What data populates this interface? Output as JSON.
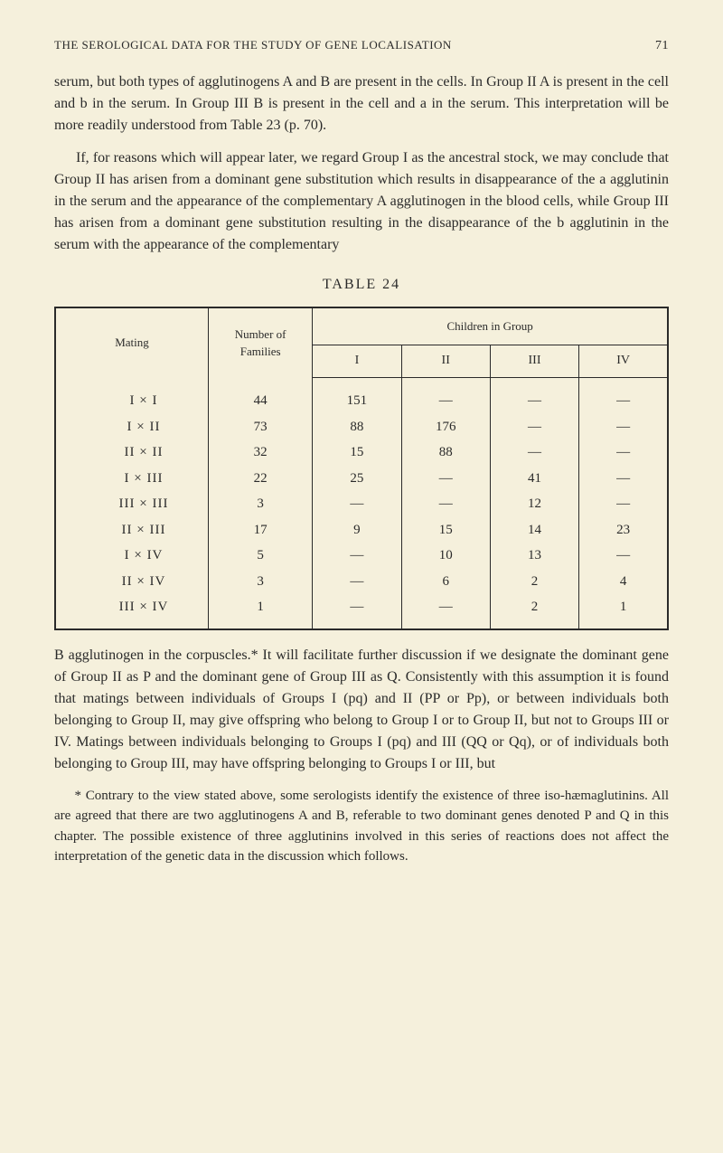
{
  "running_head": {
    "title": "THE SEROLOGICAL DATA FOR THE STUDY OF GENE LOCALISATION",
    "page": "71"
  },
  "paragraphs": {
    "p1": "serum, but both types of agglutinogens A and B are present in the cells. In Group II A is present in the cell and b in the serum. In Group III B is present in the cell and a in the serum. This interpretation will be more readily understood from Table 23 (p. 70).",
    "p2": "If, for reasons which will appear later, we regard Group I as the ancestral stock, we may conclude that Group II has arisen from a dominant gene substitution which results in disappearance of the a agglutinin in the serum and the appearance of the complementary A agglutinogen in the blood cells, while Group III has arisen from a dominant gene substitution resulting in the disappearance of the b agglutinin in the serum with the appearance of the complementary",
    "p3": "B agglutinogen in the corpuscles.* It will facilitate further discussion if we designate the dominant gene of Group II as P and the dominant gene of Group III as Q. Consistently with this assumption it is found that matings between individuals of Groups I (pq) and II (PP or Pp), or between individuals both belonging to Group II, may give offspring who belong to Group I or to Group II, but not to Groups III or IV. Matings between individuals belonging to Groups I (pq) and III (QQ or Qq), or of individuals both belonging to Group III, may have offspring belonging to Groups I or III, but",
    "footnote": "* Contrary to the view stated above, some serologists identify the existence of three iso-hæmaglutinins. All are agreed that there are two agglutinogens A and B, referable to two dominant genes denoted P and Q in this chapter. The possible existence of three agglutinins involved in this series of reactions does not affect the interpretation of the genetic data in the discussion which follows."
  },
  "table": {
    "caption": "TABLE 24",
    "headers": {
      "mating": "Mating",
      "families": "Number of\nFamilies",
      "children": "Children in Group",
      "c1": "I",
      "c2": "II",
      "c3": "III",
      "c4": "IV"
    },
    "rows": [
      {
        "mating": "I × I",
        "families": "44",
        "c1": "151",
        "c2": "—",
        "c3": "—",
        "c4": "—"
      },
      {
        "mating": "I × II",
        "families": "73",
        "c1": "88",
        "c2": "176",
        "c3": "—",
        "c4": "—"
      },
      {
        "mating": "II × II",
        "families": "32",
        "c1": "15",
        "c2": "88",
        "c3": "—",
        "c4": "—"
      },
      {
        "mating": "I × III",
        "families": "22",
        "c1": "25",
        "c2": "—",
        "c3": "41",
        "c4": "—"
      },
      {
        "mating": "III × III",
        "families": "3",
        "c1": "—",
        "c2": "—",
        "c3": "12",
        "c4": "—"
      },
      {
        "mating": "II × III",
        "families": "17",
        "c1": "9",
        "c2": "15",
        "c3": "14",
        "c4": "23"
      },
      {
        "mating": "I × IV",
        "families": "5",
        "c1": "—",
        "c2": "10",
        "c3": "13",
        "c4": "—"
      },
      {
        "mating": "II × IV",
        "families": "3",
        "c1": "—",
        "c2": "6",
        "c3": "2",
        "c4": "4"
      },
      {
        "mating": "III × IV",
        "families": "1",
        "c1": "—",
        "c2": "—",
        "c3": "2",
        "c4": "1"
      }
    ]
  }
}
